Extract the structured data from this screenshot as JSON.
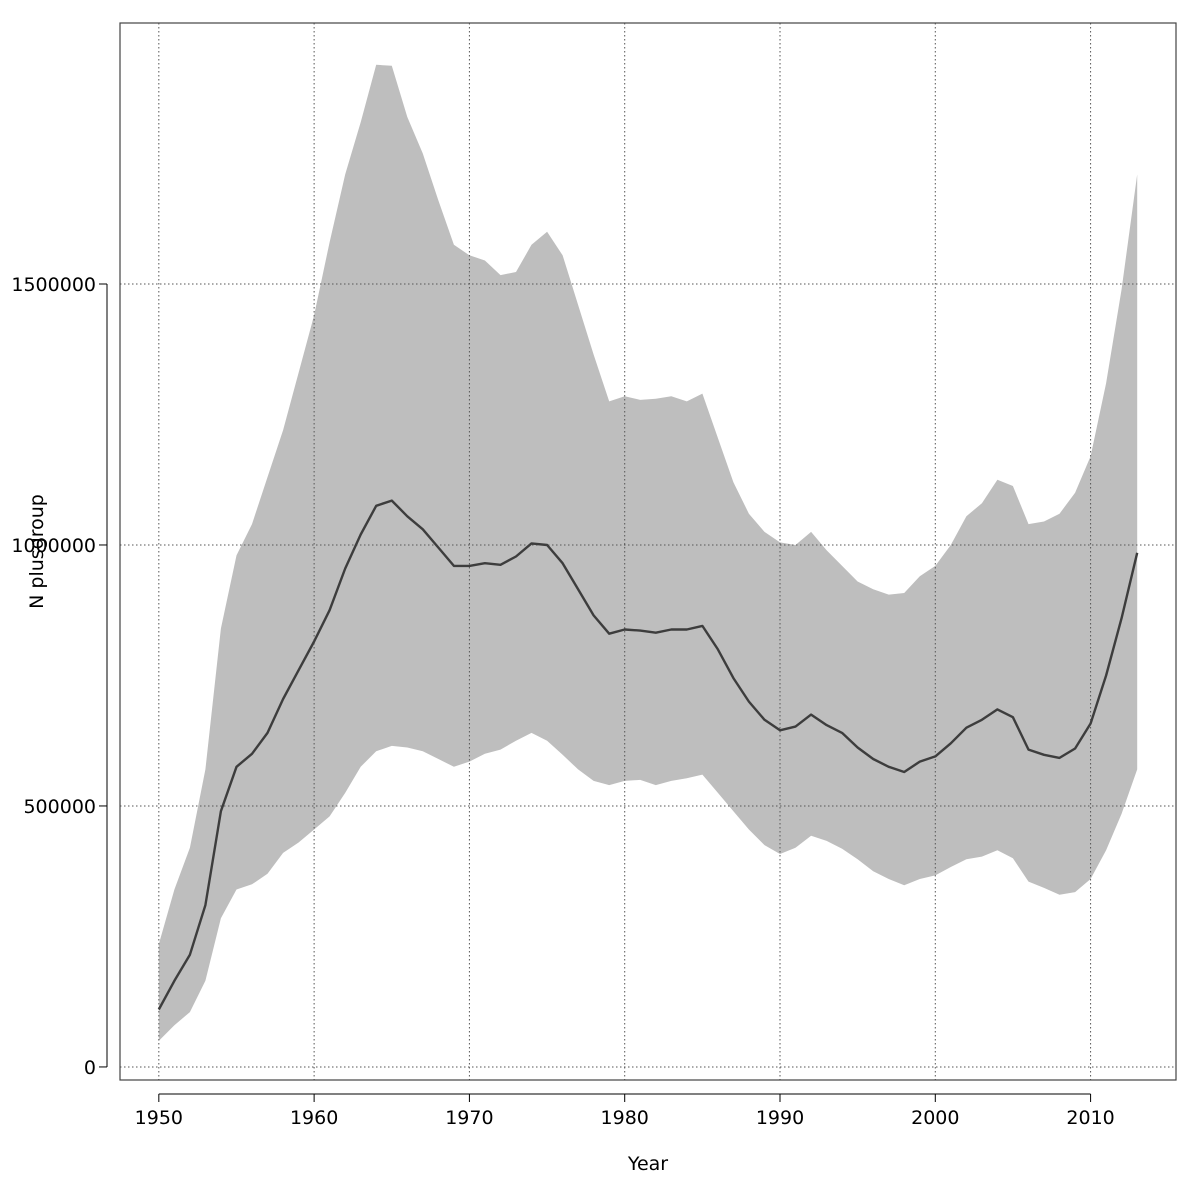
{
  "chart_data": {
    "type": "area",
    "title": "",
    "xlabel": "Year",
    "ylabel": "N plusgroup",
    "xlim": [
      1947.5,
      2015.5
    ],
    "ylim": [
      -25000,
      2000000
    ],
    "xticks": [
      1950,
      1960,
      1970,
      1980,
      1990,
      2000,
      2010
    ],
    "yticks": [
      0,
      500000,
      1000000,
      1500000
    ],
    "xtick_labels": [
      "1950",
      "1960",
      "1970",
      "1980",
      "1990",
      "2000",
      "2010"
    ],
    "ytick_labels": [
      "0",
      "500000",
      "1000000",
      "1500000"
    ],
    "grid": true,
    "legend": "none",
    "colors": {
      "band": "#bebebe",
      "line": "#3d3d3d",
      "grid": "#555555",
      "frame": "#444444"
    },
    "x": [
      1950,
      1951,
      1952,
      1953,
      1954,
      1955,
      1956,
      1957,
      1958,
      1959,
      1960,
      1961,
      1962,
      1963,
      1964,
      1965,
      1966,
      1967,
      1968,
      1969,
      1970,
      1971,
      1972,
      1973,
      1974,
      1975,
      1976,
      1977,
      1978,
      1979,
      1980,
      1981,
      1982,
      1983,
      1984,
      1985,
      1986,
      1987,
      1988,
      1989,
      1990,
      1991,
      1992,
      1993,
      1994,
      1995,
      1996,
      1997,
      1998,
      1999,
      2000,
      2001,
      2002,
      2003,
      2004,
      2005,
      2006,
      2007,
      2008,
      2009,
      2010,
      2011,
      2012,
      2013
    ],
    "series": [
      {
        "role": "median",
        "values": [
          110000,
          165000,
          215000,
          310000,
          490000,
          575000,
          600000,
          640000,
          705000,
          760000,
          815000,
          875000,
          955000,
          1020000,
          1075000,
          1085000,
          1055000,
          1030000,
          995000,
          960000,
          960000,
          965000,
          962000,
          978000,
          1003000,
          1000000,
          965000,
          915000,
          865000,
          830000,
          838000,
          836000,
          832000,
          838000,
          838000,
          845000,
          800000,
          745000,
          700000,
          665000,
          645000,
          652000,
          675000,
          655000,
          640000,
          612000,
          590000,
          575000,
          565000,
          585000,
          595000,
          620000,
          650000,
          665000,
          685000,
          670000,
          608000,
          598000,
          592000,
          610000,
          658000,
          750000,
          860000,
          985000
        ]
      },
      {
        "role": "upper",
        "values": [
          235000,
          340000,
          420000,
          570000,
          840000,
          980000,
          1040000,
          1130000,
          1220000,
          1330000,
          1440000,
          1580000,
          1710000,
          1810000,
          1920000,
          1918000,
          1820000,
          1750000,
          1660000,
          1575000,
          1555000,
          1545000,
          1517000,
          1523000,
          1575000,
          1600000,
          1555000,
          1460000,
          1365000,
          1275000,
          1285000,
          1278000,
          1280000,
          1285000,
          1275000,
          1290000,
          1205000,
          1120000,
          1060000,
          1025000,
          1005000,
          1000000,
          1025000,
          990000,
          960000,
          930000,
          915000,
          905000,
          908000,
          940000,
          960000,
          1000000,
          1055000,
          1080000,
          1125000,
          1113000,
          1040000,
          1045000,
          1060000,
          1100000,
          1170000,
          1310000,
          1490000,
          1710000
        ]
      },
      {
        "role": "lower",
        "values": [
          50000,
          80000,
          105000,
          165000,
          285000,
          340000,
          350000,
          370000,
          410000,
          430000,
          455000,
          480000,
          525000,
          575000,
          605000,
          615000,
          612000,
          605000,
          590000,
          575000,
          585000,
          600000,
          608000,
          625000,
          640000,
          625000,
          598000,
          570000,
          548000,
          540000,
          548000,
          550000,
          540000,
          548000,
          553000,
          560000,
          525000,
          490000,
          455000,
          425000,
          408000,
          420000,
          443000,
          433000,
          418000,
          398000,
          375000,
          360000,
          348000,
          360000,
          367000,
          383000,
          398000,
          403000,
          415000,
          400000,
          355000,
          343000,
          330000,
          335000,
          360000,
          415000,
          485000,
          570000
        ]
      }
    ]
  }
}
